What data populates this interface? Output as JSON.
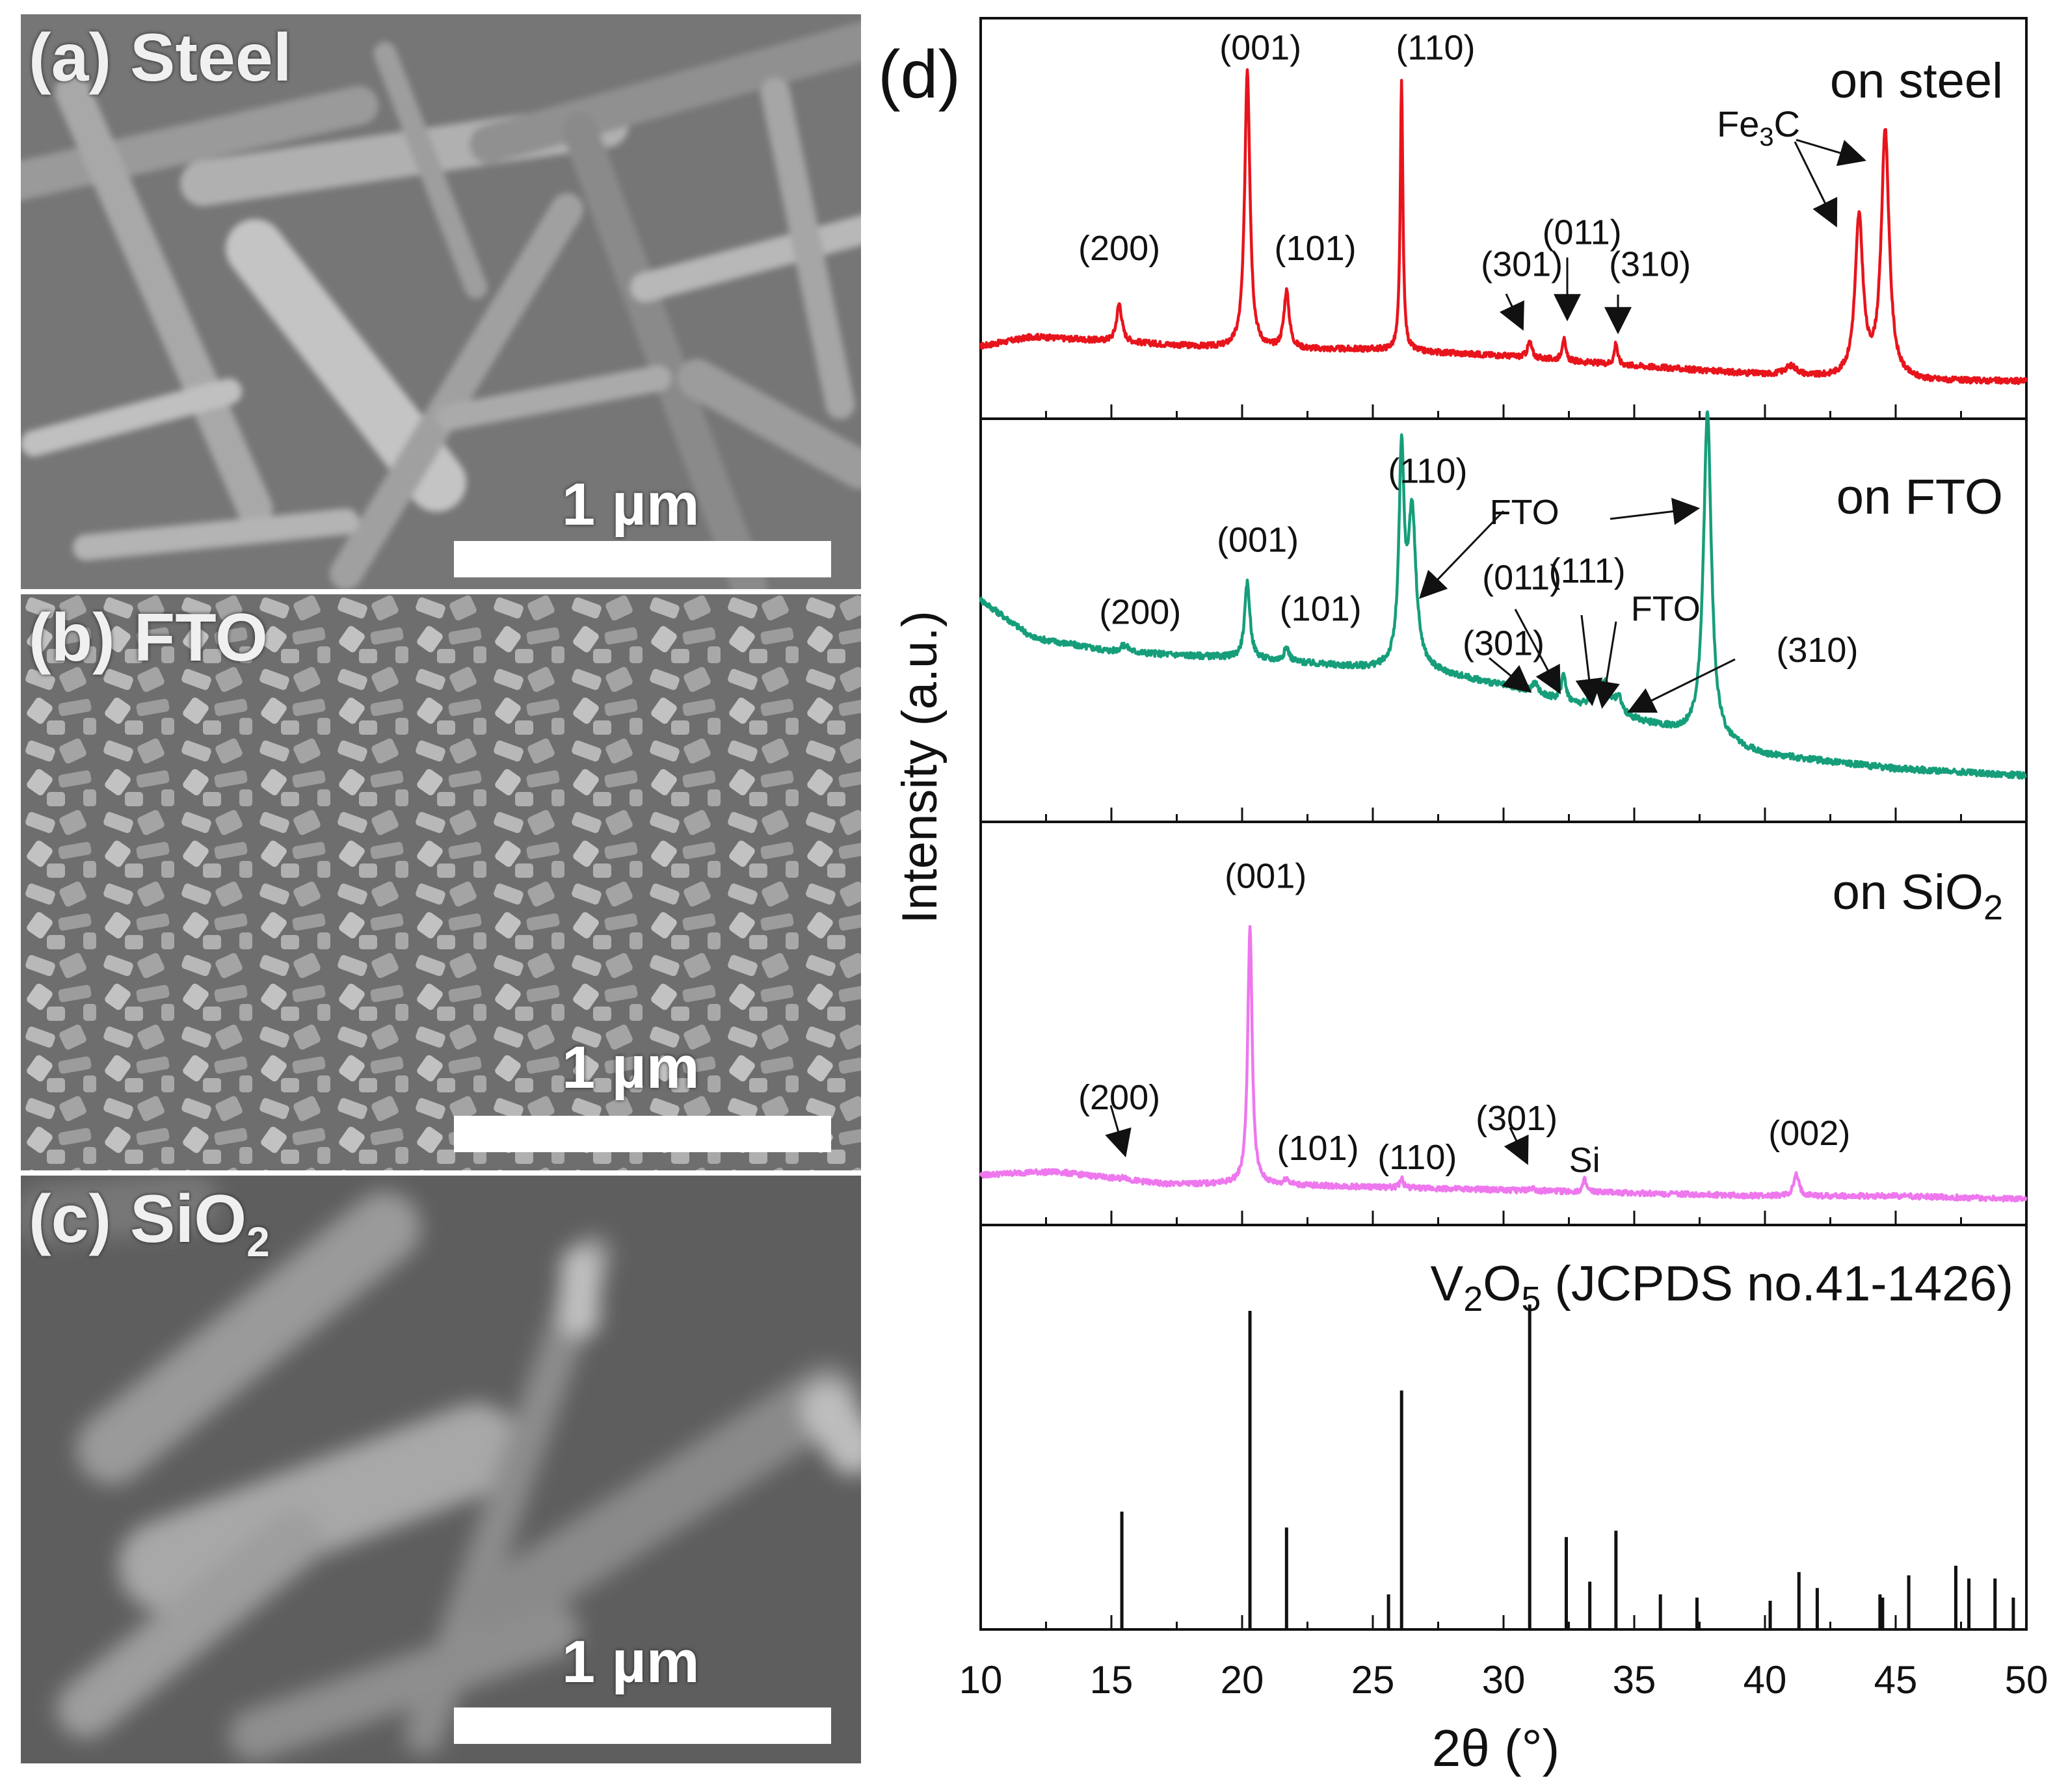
{
  "sem_panels": [
    {
      "tag": "(a)",
      "name": "Steel",
      "sub": "",
      "scale_bar": "1 µm"
    },
    {
      "tag": "(b)",
      "name": "FTO",
      "sub": "",
      "scale_bar": "1 µm"
    },
    {
      "tag": "(c)",
      "name": "SiO",
      "sub": "2",
      "scale_bar": "1 µm"
    }
  ],
  "chart_data": {
    "type": "line",
    "panel_label": "(d)",
    "xlabel": "2θ (°)",
    "ylabel": "Intensity (a.u.)",
    "xlim": [
      10,
      50
    ],
    "xticks": [
      "10",
      "15",
      "20",
      "25",
      "30",
      "35",
      "40",
      "45",
      "50"
    ],
    "colors": {
      "steel": "#e8141c",
      "fto": "#169e7a",
      "sio2": "#ee77ee",
      "ref": "#111111"
    },
    "series": [
      {
        "key": "steel",
        "name": "on steel",
        "baseline": [
          [
            10,
            0.15
          ],
          [
            12,
            0.18
          ],
          [
            14,
            0.17
          ],
          [
            18,
            0.15
          ],
          [
            20,
            0.14
          ],
          [
            25,
            0.14
          ],
          [
            30,
            0.12
          ],
          [
            33,
            0.1
          ],
          [
            40,
            0.06
          ],
          [
            42,
            0.05
          ],
          [
            45,
            0.04
          ],
          [
            50,
            0.04
          ]
        ],
        "peaks": [
          [
            15.3,
            0.12,
            0.12
          ],
          [
            20.2,
            0.88,
            0.12
          ],
          [
            21.7,
            0.18,
            0.12
          ],
          [
            26.1,
            0.84,
            0.06
          ],
          [
            31.0,
            0.05,
            0.1
          ],
          [
            32.3,
            0.07,
            0.08
          ],
          [
            34.3,
            0.07,
            0.07
          ],
          [
            41.0,
            0.03,
            0.3
          ],
          [
            43.6,
            0.5,
            0.18
          ],
          [
            44.6,
            0.78,
            0.18
          ]
        ],
        "labels": [
          {
            "text": "(200)",
            "x": 15.3,
            "y": 0.42
          },
          {
            "text": "(001)",
            "x": 20.7,
            "y": 1.05
          },
          {
            "text": "(101)",
            "x": 22.8,
            "y": 0.42
          },
          {
            "text": "(110)",
            "x": 27.4,
            "y": 1.05
          },
          {
            "text": "(301)",
            "x": 30.7,
            "y": 0.37
          },
          {
            "text": "(011)",
            "x": 33.0,
            "y": 0.47
          },
          {
            "text": "(310)",
            "x": 35.6,
            "y": 0.37
          }
        ]
      },
      {
        "key": "fto",
        "name": "on FTO",
        "baseline": [
          [
            10,
            0.55
          ],
          [
            12,
            0.44
          ],
          [
            15,
            0.4
          ],
          [
            20,
            0.38
          ],
          [
            25,
            0.35
          ],
          [
            26.5,
            0.35
          ],
          [
            28,
            0.33
          ],
          [
            30,
            0.3
          ],
          [
            32,
            0.26
          ],
          [
            35,
            0.2
          ],
          [
            37,
            0.16
          ],
          [
            40,
            0.1
          ],
          [
            45,
            0.06
          ],
          [
            50,
            0.04
          ]
        ],
        "peaks": [
          [
            15.5,
            0.02,
            0.2
          ],
          [
            20.2,
            0.22,
            0.12
          ],
          [
            21.7,
            0.04,
            0.12
          ],
          [
            26.1,
            0.6,
            0.12
          ],
          [
            26.5,
            0.44,
            0.18
          ],
          [
            31.2,
            0.03,
            0.15
          ],
          [
            32.3,
            0.08,
            0.1
          ],
          [
            33.5,
            0.06,
            0.15
          ],
          [
            33.9,
            0.08,
            0.2
          ],
          [
            34.4,
            0.05,
            0.15
          ],
          [
            37.8,
            0.95,
            0.18
          ]
        ],
        "labels": [
          {
            "text": "(200)",
            "x": 16.1,
            "y": 0.48
          },
          {
            "text": "(001)",
            "x": 20.6,
            "y": 0.69
          },
          {
            "text": "(101)",
            "x": 23.0,
            "y": 0.49
          },
          {
            "text": "(110)",
            "x": 27.1,
            "y": 0.89
          },
          {
            "text": "FTO",
            "x": 30.8,
            "y": 0.77
          },
          {
            "text": "(011)",
            "x": 30.7,
            "y": 0.58
          },
          {
            "text": "(111)",
            "x": 33.2,
            "y": 0.6
          },
          {
            "text": "FTO",
            "x": 36.2,
            "y": 0.49
          },
          {
            "text": "(301)",
            "x": 30.0,
            "y": 0.39
          },
          {
            "text": "(310)",
            "x": 42.0,
            "y": 0.37
          }
        ]
      },
      {
        "key": "sio2",
        "name": "on SiO",
        "name_sub": "2",
        "baseline": [
          [
            10,
            0.08
          ],
          [
            12,
            0.09
          ],
          [
            13,
            0.09
          ],
          [
            15,
            0.07
          ],
          [
            17,
            0.05
          ],
          [
            20,
            0.05
          ],
          [
            25,
            0.04
          ],
          [
            30,
            0.03
          ],
          [
            35,
            0.02
          ],
          [
            40,
            0.01
          ],
          [
            45,
            0.01
          ],
          [
            50,
            0.0
          ]
        ],
        "peaks": [
          [
            15.5,
            0.01,
            0.1
          ],
          [
            20.3,
            0.86,
            0.1
          ],
          [
            21.7,
            0.02,
            0.1
          ],
          [
            26.1,
            0.03,
            0.08
          ],
          [
            31.1,
            0.01,
            0.1
          ],
          [
            33.1,
            0.04,
            0.08
          ],
          [
            41.2,
            0.07,
            0.12
          ]
        ],
        "labels": [
          {
            "text": "(200)",
            "x": 15.3,
            "y": 0.3
          },
          {
            "text": "(001)",
            "x": 20.9,
            "y": 1.04
          },
          {
            "text": "(101)",
            "x": 22.9,
            "y": 0.13
          },
          {
            "text": "(110)",
            "x": 26.7,
            "y": 0.1
          },
          {
            "text": "(301)",
            "x": 30.5,
            "y": 0.23
          },
          {
            "text": "Si",
            "x": 33.1,
            "y": 0.09
          },
          {
            "text": "(002)",
            "x": 41.7,
            "y": 0.18
          }
        ]
      }
    ],
    "reference": {
      "name": "V",
      "name_parts": [
        "2",
        "O",
        "5",
        " (JCPDS no.41-1426)"
      ],
      "x": [
        15.4,
        20.3,
        21.7,
        25.6,
        26.1,
        31.0,
        32.4,
        33.3,
        34.3,
        36.0,
        37.4,
        40.2,
        41.3,
        42.0,
        44.4,
        44.5,
        45.5,
        47.3,
        47.8,
        48.8,
        49.5
      ],
      "y": [
        0.37,
        1.0,
        0.32,
        0.11,
        0.75,
        1.02,
        0.29,
        0.15,
        0.31,
        0.11,
        0.1,
        0.09,
        0.18,
        0.13,
        0.11,
        0.1,
        0.17,
        0.2,
        0.16,
        0.16,
        0.1
      ]
    },
    "annotations": {
      "fe3c": {
        "text": "Fe",
        "sub": "3",
        "suffix": "C"
      }
    }
  }
}
